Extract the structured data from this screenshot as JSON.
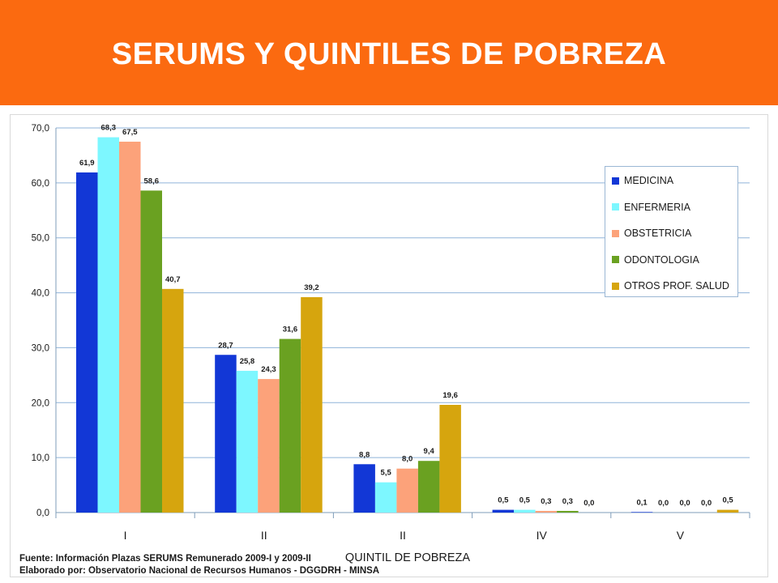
{
  "header": {
    "title": "SERUMS Y QUINTILES DE POBREZA"
  },
  "colors": {
    "header_bg": "#fb6a10",
    "series": [
      "#1237d6",
      "#7df7ff",
      "#fca27a",
      "#6aa121",
      "#d6a50e"
    ],
    "grid": "#8fb3d9"
  },
  "chart_data": {
    "type": "bar",
    "title": "",
    "xlabel": "QUINTIL DE POBREZA",
    "ylabel": "",
    "categories": [
      "I",
      "II",
      "II",
      "IV",
      "V"
    ],
    "ylim": [
      0,
      70
    ],
    "yticks": [
      "0,0",
      "10,0",
      "20,0",
      "30,0",
      "40,0",
      "50,0",
      "60,0",
      "70,0"
    ],
    "grid": true,
    "legend_position": "right",
    "series": [
      {
        "name": "MEDICINA",
        "values": [
          61.9,
          28.7,
          8.8,
          0.5,
          0.1
        ],
        "labels": [
          "61,9",
          "28,7",
          "8,8",
          "0,5",
          "0,1"
        ]
      },
      {
        "name": "ENFERMERIA",
        "values": [
          68.3,
          25.8,
          5.5,
          0.5,
          0.0
        ],
        "labels": [
          "68,3",
          "25,8",
          "5,5",
          "0,5",
          "0,0"
        ]
      },
      {
        "name": "OBSTETRICIA",
        "values": [
          67.5,
          24.3,
          8.0,
          0.3,
          0.0
        ],
        "labels": [
          "67,5",
          "24,3",
          "8,0",
          "0,3",
          "0,0"
        ]
      },
      {
        "name": "ODONTOLOGIA",
        "values": [
          58.6,
          31.6,
          9.4,
          0.3,
          0.0
        ],
        "labels": [
          "58,6",
          "31,6",
          "9,4",
          "0,3",
          "0,0"
        ]
      },
      {
        "name": "OTROS PROF. SALUD",
        "values": [
          40.7,
          39.2,
          19.6,
          0.0,
          0.5
        ],
        "labels": [
          "40,7",
          "39,2",
          "19,6",
          "0,0",
          "0,5"
        ]
      }
    ]
  },
  "footer": {
    "source": "Fuente: Información Plazas SERUMS Remunerado 2009-I y 2009-II",
    "prepared_by": "Elaborado por: Observatorio Nacional de Recursos Humanos - DGGDRH - MINSA"
  }
}
